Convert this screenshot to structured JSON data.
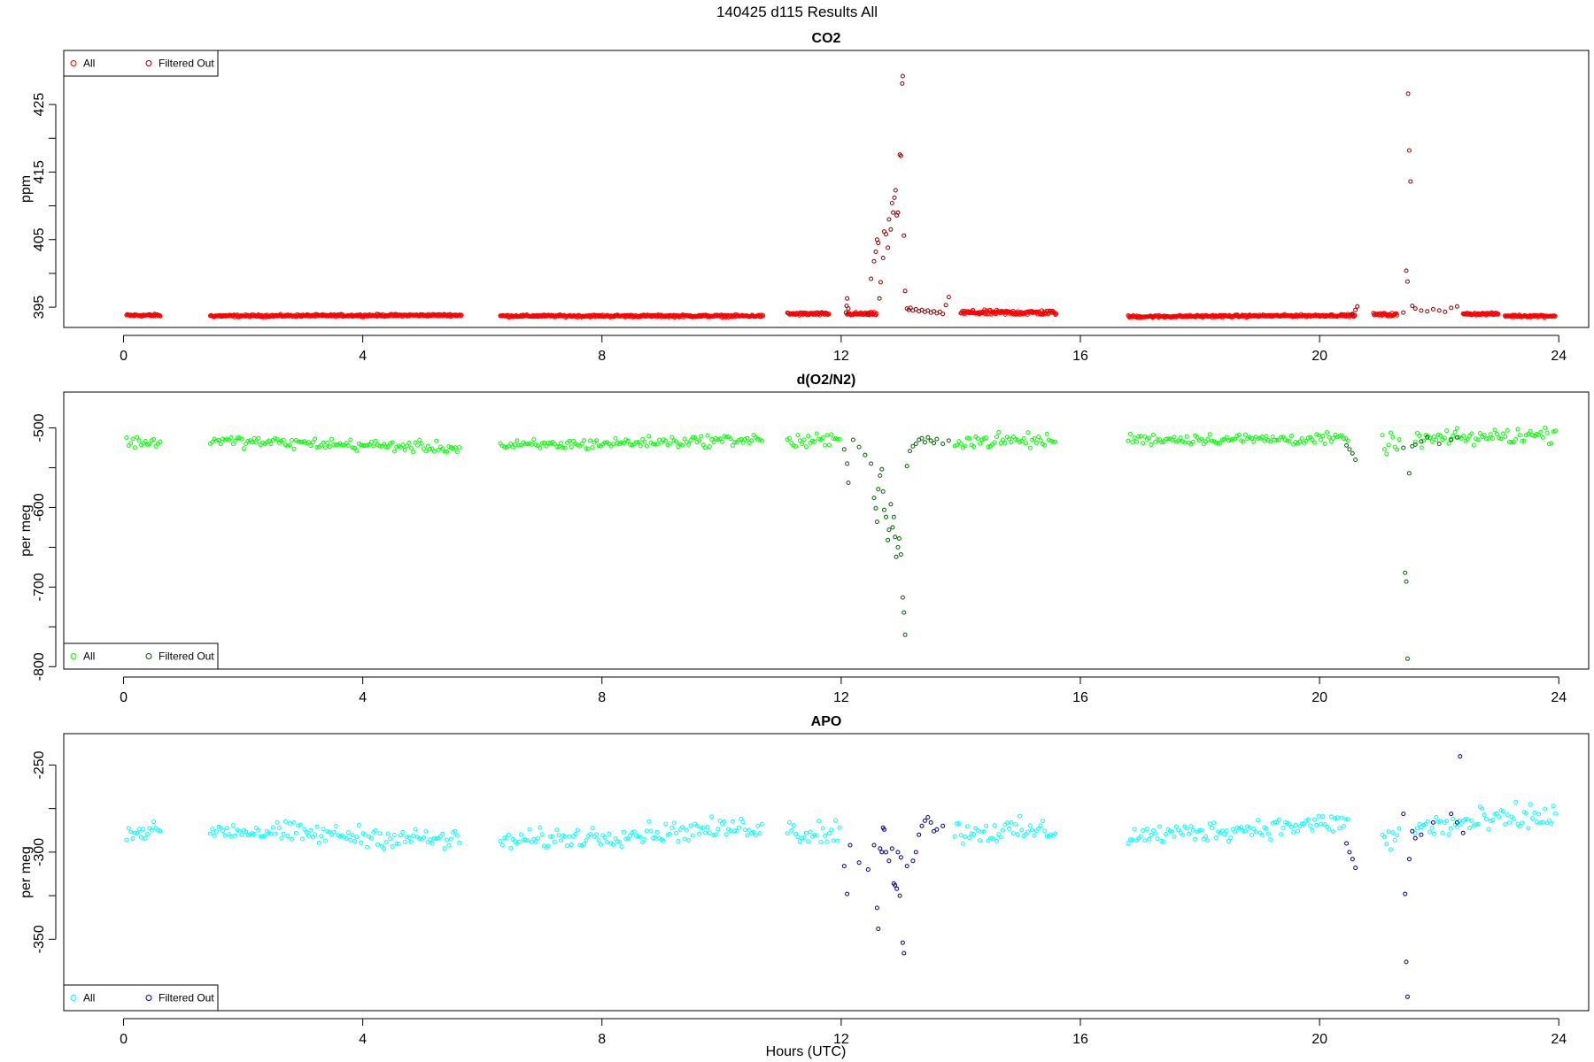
{
  "figure": {
    "title": "140425   d115   Results All",
    "xlabel": "Hours (UTC)"
  },
  "chart_data": [
    {
      "type": "scatter",
      "title": "CO2",
      "ylabel": "ppm",
      "xlim": [
        -1,
        24.5
      ],
      "ylim": [
        392,
        433
      ],
      "xticks": [
        0,
        4,
        8,
        12,
        16,
        20,
        24
      ],
      "yticks": [
        395,
        405,
        415,
        425
      ],
      "legend": {
        "position": "top-left",
        "entries": [
          "All",
          "Filtered Out"
        ]
      },
      "colors": {
        "all": "#ff0000",
        "filtered": "#8b0000"
      },
      "segments": [
        {
          "x_start": 0.05,
          "x_end": 0.62,
          "base": 393.8,
          "slope": 0,
          "noise": 0.15,
          "step": 0.012
        },
        {
          "x_start": 1.45,
          "x_end": 5.65,
          "base": 393.7,
          "slope": 0.03,
          "noise": 0.15,
          "step": 0.012
        },
        {
          "x_start": 6.3,
          "x_end": 10.7,
          "base": 393.7,
          "slope": 0.0,
          "noise": 0.15,
          "step": 0.012
        },
        {
          "x_start": 11.1,
          "x_end": 11.8,
          "base": 394.0,
          "slope": 0,
          "noise": 0.2,
          "step": 0.012
        },
        {
          "x_start": 12.1,
          "x_end": 12.6,
          "base": 394.0,
          "slope": 0,
          "noise": 0.2,
          "step": 0.012
        },
        {
          "x_start": 14.0,
          "x_end": 15.6,
          "base": 394.2,
          "slope": 0,
          "noise": 0.3,
          "step": 0.012
        },
        {
          "x_start": 16.8,
          "x_end": 20.6,
          "base": 393.6,
          "slope": 0.05,
          "noise": 0.15,
          "step": 0.012
        },
        {
          "x_start": 20.9,
          "x_end": 21.3,
          "base": 393.9,
          "slope": 0,
          "noise": 0.2,
          "step": 0.012
        },
        {
          "x_start": 22.4,
          "x_end": 23.0,
          "base": 394.0,
          "slope": 0,
          "noise": 0.15,
          "step": 0.012
        },
        {
          "x_start": 23.1,
          "x_end": 23.95,
          "base": 393.7,
          "slope": 0,
          "noise": 0.15,
          "step": 0.012
        }
      ],
      "filtered_points": [
        [
          12.08,
          394.2
        ],
        [
          12.09,
          395.2
        ],
        [
          12.1,
          396.3
        ],
        [
          12.12,
          394.8
        ],
        [
          12.45,
          393.9
        ],
        [
          12.5,
          399.2
        ],
        [
          12.55,
          401.8
        ],
        [
          12.58,
          403.2
        ],
        [
          12.6,
          405.0
        ],
        [
          12.62,
          404.5
        ],
        [
          12.64,
          396.3
        ],
        [
          12.66,
          398.7
        ],
        [
          12.7,
          402.3
        ],
        [
          12.72,
          406.2
        ],
        [
          12.75,
          405.8
        ],
        [
          12.78,
          403.8
        ],
        [
          12.8,
          408.0
        ],
        [
          12.83,
          406.5
        ],
        [
          12.85,
          410.4
        ],
        [
          12.87,
          409.0
        ],
        [
          12.89,
          411.2
        ],
        [
          12.91,
          412.3
        ],
        [
          12.93,
          408.6
        ],
        [
          12.95,
          409.0
        ],
        [
          12.98,
          417.6
        ],
        [
          13.0,
          417.4
        ],
        [
          13.02,
          428.1
        ],
        [
          13.03,
          429.2
        ],
        [
          13.05,
          405.6
        ],
        [
          13.07,
          397.4
        ],
        [
          13.1,
          394.8
        ],
        [
          13.13,
          394.6
        ],
        [
          13.16,
          394.9
        ],
        [
          13.2,
          394.5
        ],
        [
          13.25,
          394.7
        ],
        [
          13.3,
          394.4
        ],
        [
          13.35,
          394.6
        ],
        [
          13.4,
          394.3
        ],
        [
          13.45,
          394.5
        ],
        [
          13.5,
          394.2
        ],
        [
          13.55,
          394.4
        ],
        [
          13.6,
          394.1
        ],
        [
          13.65,
          394.3
        ],
        [
          13.7,
          394.0
        ],
        [
          13.75,
          395.3
        ],
        [
          13.8,
          396.5
        ],
        [
          20.55,
          394.0
        ],
        [
          20.6,
          394.6
        ],
        [
          20.63,
          395.1
        ],
        [
          21.4,
          394.2
        ],
        [
          21.45,
          400.4
        ],
        [
          21.47,
          398.8
        ],
        [
          21.5,
          418.2
        ],
        [
          21.52,
          413.6
        ],
        [
          21.48,
          426.6
        ],
        [
          21.55,
          395.2
        ],
        [
          21.6,
          394.8
        ],
        [
          21.7,
          394.5
        ],
        [
          21.8,
          394.4
        ],
        [
          21.9,
          394.7
        ],
        [
          22.0,
          394.5
        ],
        [
          22.1,
          394.3
        ],
        [
          22.2,
          394.9
        ],
        [
          22.3,
          395.1
        ]
      ]
    },
    {
      "type": "scatter",
      "title": "d(O2/N2)",
      "ylabel": "per meg",
      "xlim": [
        -1,
        24.5
      ],
      "ylim": [
        -803,
        -455
      ],
      "xticks": [
        0,
        4,
        8,
        12,
        16,
        20,
        24
      ],
      "yticks": [
        -800,
        -700,
        -600,
        -500
      ],
      "legend": {
        "position": "bottom-left",
        "entries": [
          "All",
          "Filtered Out"
        ]
      },
      "colors": {
        "all": "#00ff00",
        "filtered": "#006400"
      },
      "segments": [
        {
          "x_start": 0.05,
          "x_end": 0.62,
          "base": -518,
          "slope": 0,
          "noise": 6,
          "step": 0.035
        },
        {
          "x_start": 1.45,
          "x_end": 5.65,
          "base": -516,
          "slope": -2.2,
          "noise": 6,
          "step": 0.035
        },
        {
          "x_start": 6.3,
          "x_end": 10.7,
          "base": -523,
          "slope": 2.0,
          "noise": 6,
          "step": 0.035
        },
        {
          "x_start": 11.1,
          "x_end": 12.0,
          "base": -517,
          "slope": 0,
          "noise": 9,
          "step": 0.035
        },
        {
          "x_start": 13.9,
          "x_end": 15.6,
          "base": -516,
          "slope": 0,
          "noise": 8,
          "step": 0.035
        },
        {
          "x_start": 16.8,
          "x_end": 20.5,
          "base": -514,
          "slope": 0,
          "noise": 6,
          "step": 0.035
        },
        {
          "x_start": 21.05,
          "x_end": 21.35,
          "base": -520,
          "slope": 0,
          "noise": 10,
          "step": 0.035
        },
        {
          "x_start": 21.6,
          "x_end": 23.95,
          "base": -515,
          "slope": 3.0,
          "noise": 9,
          "step": 0.035
        }
      ],
      "filtered_points": [
        [
          12.05,
          -527
        ],
        [
          12.1,
          -545
        ],
        [
          12.12,
          -569
        ],
        [
          12.2,
          -515
        ],
        [
          12.3,
          -524
        ],
        [
          12.4,
          -534
        ],
        [
          12.5,
          -545
        ],
        [
          12.55,
          -588
        ],
        [
          12.58,
          -601
        ],
        [
          12.6,
          -618
        ],
        [
          12.62,
          -577
        ],
        [
          12.65,
          -560
        ],
        [
          12.68,
          -552
        ],
        [
          12.7,
          -580
        ],
        [
          12.72,
          -603
        ],
        [
          12.75,
          -612
        ],
        [
          12.78,
          -641
        ],
        [
          12.8,
          -628
        ],
        [
          12.83,
          -596
        ],
        [
          12.86,
          -625
        ],
        [
          12.88,
          -612
        ],
        [
          12.9,
          -637
        ],
        [
          12.92,
          -662
        ],
        [
          12.95,
          -650
        ],
        [
          12.97,
          -639
        ],
        [
          13.0,
          -659
        ],
        [
          13.03,
          -713
        ],
        [
          13.05,
          -732
        ],
        [
          13.07,
          -760
        ],
        [
          13.1,
          -548
        ],
        [
          13.15,
          -529
        ],
        [
          13.2,
          -523
        ],
        [
          13.25,
          -520
        ],
        [
          13.3,
          -515
        ],
        [
          13.35,
          -513
        ],
        [
          13.4,
          -518
        ],
        [
          13.45,
          -512
        ],
        [
          13.5,
          -516
        ],
        [
          13.55,
          -519
        ],
        [
          13.6,
          -514
        ],
        [
          13.7,
          -520
        ],
        [
          13.8,
          -516
        ],
        [
          20.45,
          -522
        ],
        [
          20.5,
          -527
        ],
        [
          20.55,
          -532
        ],
        [
          20.6,
          -540
        ],
        [
          21.4,
          -525
        ],
        [
          21.43,
          -682
        ],
        [
          21.45,
          -693
        ],
        [
          21.47,
          -790
        ],
        [
          21.5,
          -557
        ],
        [
          21.55,
          -523
        ],
        [
          21.6,
          -521
        ],
        [
          21.7,
          -517
        ],
        [
          21.8,
          -512
        ],
        [
          22.0,
          -520
        ],
        [
          22.2,
          -515
        ],
        [
          22.3,
          -512
        ]
      ]
    },
    {
      "type": "scatter",
      "title": "APO",
      "ylabel": "per meg",
      "xlim": [
        -1,
        24.5
      ],
      "ylim": [
        -391,
        -232
      ],
      "xticks": [
        0,
        4,
        8,
        12,
        16,
        20,
        24
      ],
      "yticks": [
        -350,
        -300,
        -250
      ],
      "legend": {
        "position": "bottom-left",
        "entries": [
          "All",
          "Filtered Out"
        ]
      },
      "colors": {
        "all": "#00ffff",
        "filtered": "#00008b"
      },
      "segments": [
        {
          "x_start": 0.05,
          "x_end": 0.62,
          "base": -288,
          "slope": 0,
          "noise": 4,
          "step": 0.035
        },
        {
          "x_start": 1.45,
          "x_end": 5.65,
          "base": -287,
          "slope": -1.5,
          "noise": 5,
          "step": 0.035
        },
        {
          "x_start": 6.3,
          "x_end": 10.7,
          "base": -294,
          "slope": 2.0,
          "noise": 5,
          "step": 0.035
        },
        {
          "x_start": 11.1,
          "x_end": 12.0,
          "base": -288,
          "slope": 0,
          "noise": 7,
          "step": 0.035
        },
        {
          "x_start": 13.9,
          "x_end": 15.6,
          "base": -288,
          "slope": 0,
          "noise": 6,
          "step": 0.035
        },
        {
          "x_start": 16.8,
          "x_end": 20.5,
          "base": -291,
          "slope": 2.2,
          "noise": 5,
          "step": 0.035
        },
        {
          "x_start": 21.05,
          "x_end": 21.35,
          "base": -292,
          "slope": 0,
          "noise": 8,
          "step": 0.035
        },
        {
          "x_start": 21.6,
          "x_end": 23.95,
          "base": -286,
          "slope": 3.0,
          "noise": 7,
          "step": 0.035
        }
      ],
      "filtered_points": [
        [
          12.05,
          -308
        ],
        [
          12.1,
          -324
        ],
        [
          12.15,
          -296
        ],
        [
          12.3,
          -306
        ],
        [
          12.45,
          -310
        ],
        [
          12.55,
          -296
        ],
        [
          12.6,
          -332
        ],
        [
          12.62,
          -344
        ],
        [
          12.65,
          -298
        ],
        [
          12.68,
          -300
        ],
        [
          12.7,
          -286
        ],
        [
          12.72,
          -287
        ],
        [
          12.75,
          -300
        ],
        [
          12.8,
          -305
        ],
        [
          12.85,
          -298
        ],
        [
          12.88,
          -318
        ],
        [
          12.9,
          -319
        ],
        [
          12.93,
          -321
        ],
        [
          12.95,
          -300
        ],
        [
          12.98,
          -325
        ],
        [
          13.0,
          -303
        ],
        [
          13.03,
          -352
        ],
        [
          13.05,
          -358
        ],
        [
          13.1,
          -308
        ],
        [
          13.2,
          -305
        ],
        [
          13.25,
          -300
        ],
        [
          13.3,
          -290
        ],
        [
          13.35,
          -285
        ],
        [
          13.4,
          -282
        ],
        [
          13.45,
          -280
        ],
        [
          13.5,
          -283
        ],
        [
          13.55,
          -288
        ],
        [
          13.6,
          -287
        ],
        [
          13.7,
          -285
        ],
        [
          20.45,
          -295
        ],
        [
          20.5,
          -300
        ],
        [
          20.55,
          -304
        ],
        [
          20.6,
          -309
        ],
        [
          21.4,
          -278
        ],
        [
          21.43,
          -324
        ],
        [
          21.45,
          -363
        ],
        [
          21.47,
          -383
        ],
        [
          21.5,
          -304
        ],
        [
          21.55,
          -288
        ],
        [
          21.6,
          -292
        ],
        [
          21.7,
          -290
        ],
        [
          21.9,
          -283
        ],
        [
          22.2,
          -278
        ],
        [
          22.3,
          -283
        ],
        [
          22.35,
          -245
        ],
        [
          22.4,
          -289
        ]
      ]
    }
  ]
}
